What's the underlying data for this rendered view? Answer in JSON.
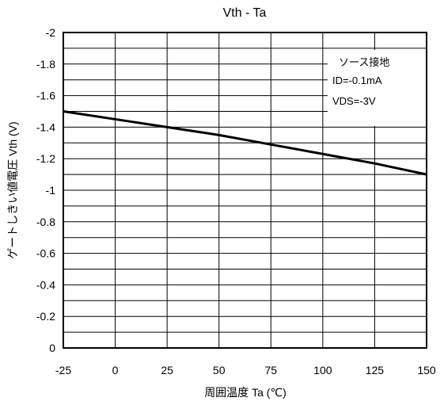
{
  "chart_data": {
    "type": "line",
    "title": "Vth - Ta",
    "xlabel": "周囲温度  Ta (℃)",
    "ylabel": "ゲートしきい値電圧  Vth (V)",
    "xlim": [
      -25,
      150
    ],
    "ylim": [
      -2,
      0
    ],
    "y_inverted": true,
    "x_ticks": [
      -25,
      0,
      25,
      50,
      75,
      100,
      125,
      150
    ],
    "y_ticks": [
      0,
      -0.2,
      -0.4,
      -0.6,
      -0.8,
      -1,
      -1.2,
      -1.4,
      -1.6,
      -1.8,
      -2
    ],
    "grid": true,
    "series": [
      {
        "x": [
          -25,
          0,
          25,
          50,
          75,
          100,
          125,
          150
        ],
        "y": [
          -1.5,
          -1.45,
          -1.4,
          -1.35,
          -1.29,
          -1.23,
          -1.17,
          -1.1
        ],
        "color": "#000000"
      }
    ],
    "legend_position": "top-right",
    "annotations": [
      "ソース接地",
      "ID=-0.1mA",
      "VDS=-3V"
    ]
  }
}
